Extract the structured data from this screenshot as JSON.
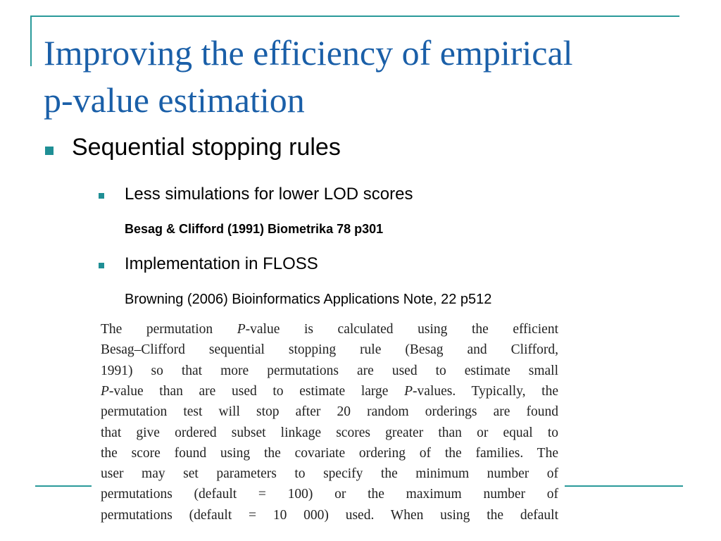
{
  "header": {
    "title_lines": [
      "Improving the efficiency of  empirical",
      "p-value estimation"
    ]
  },
  "bullets": [
    {
      "text": "Sequential stopping rules",
      "children": [
        {
          "text": "Less simulations for lower LOD scores",
          "reference": "Besag & Clifford (1991) Biometrika 78 p301"
        },
        {
          "text": "Implementation in FLOSS",
          "reference": "Browning (2006) Bioinformatics Applications Note, 22 p512"
        }
      ]
    }
  ],
  "excerpt": {
    "lines": [
      [
        {
          "text": "The permutation "
        },
        {
          "text": "P",
          "italic": true
        },
        {
          "text": "-value is calculated using the efficient"
        }
      ],
      [
        {
          "text": "Besag–Clifford sequential stopping rule (Besag and Clifford,"
        }
      ],
      [
        {
          "text": "1991) so that more permutations are used to estimate small"
        }
      ],
      [
        {
          "text": "P",
          "italic": true
        },
        {
          "text": "-value than are used to estimate large "
        },
        {
          "text": "P",
          "italic": true
        },
        {
          "text": "-values. Typically, the"
        }
      ],
      [
        {
          "text": "permutation test will stop after 20 random orderings are found"
        }
      ],
      [
        {
          "text": "that give ordered subset linkage scores greater than or equal to"
        }
      ],
      [
        {
          "text": "the score found using the covariate ordering of the families. The"
        }
      ],
      [
        {
          "text": "user may set parameters to specify the minimum number of"
        }
      ],
      [
        {
          "text": "permutations (default = 100) or the maximum number of"
        }
      ],
      [
        {
          "text": "permutations (default = 10 000) used. When using the default"
        }
      ]
    ]
  }
}
